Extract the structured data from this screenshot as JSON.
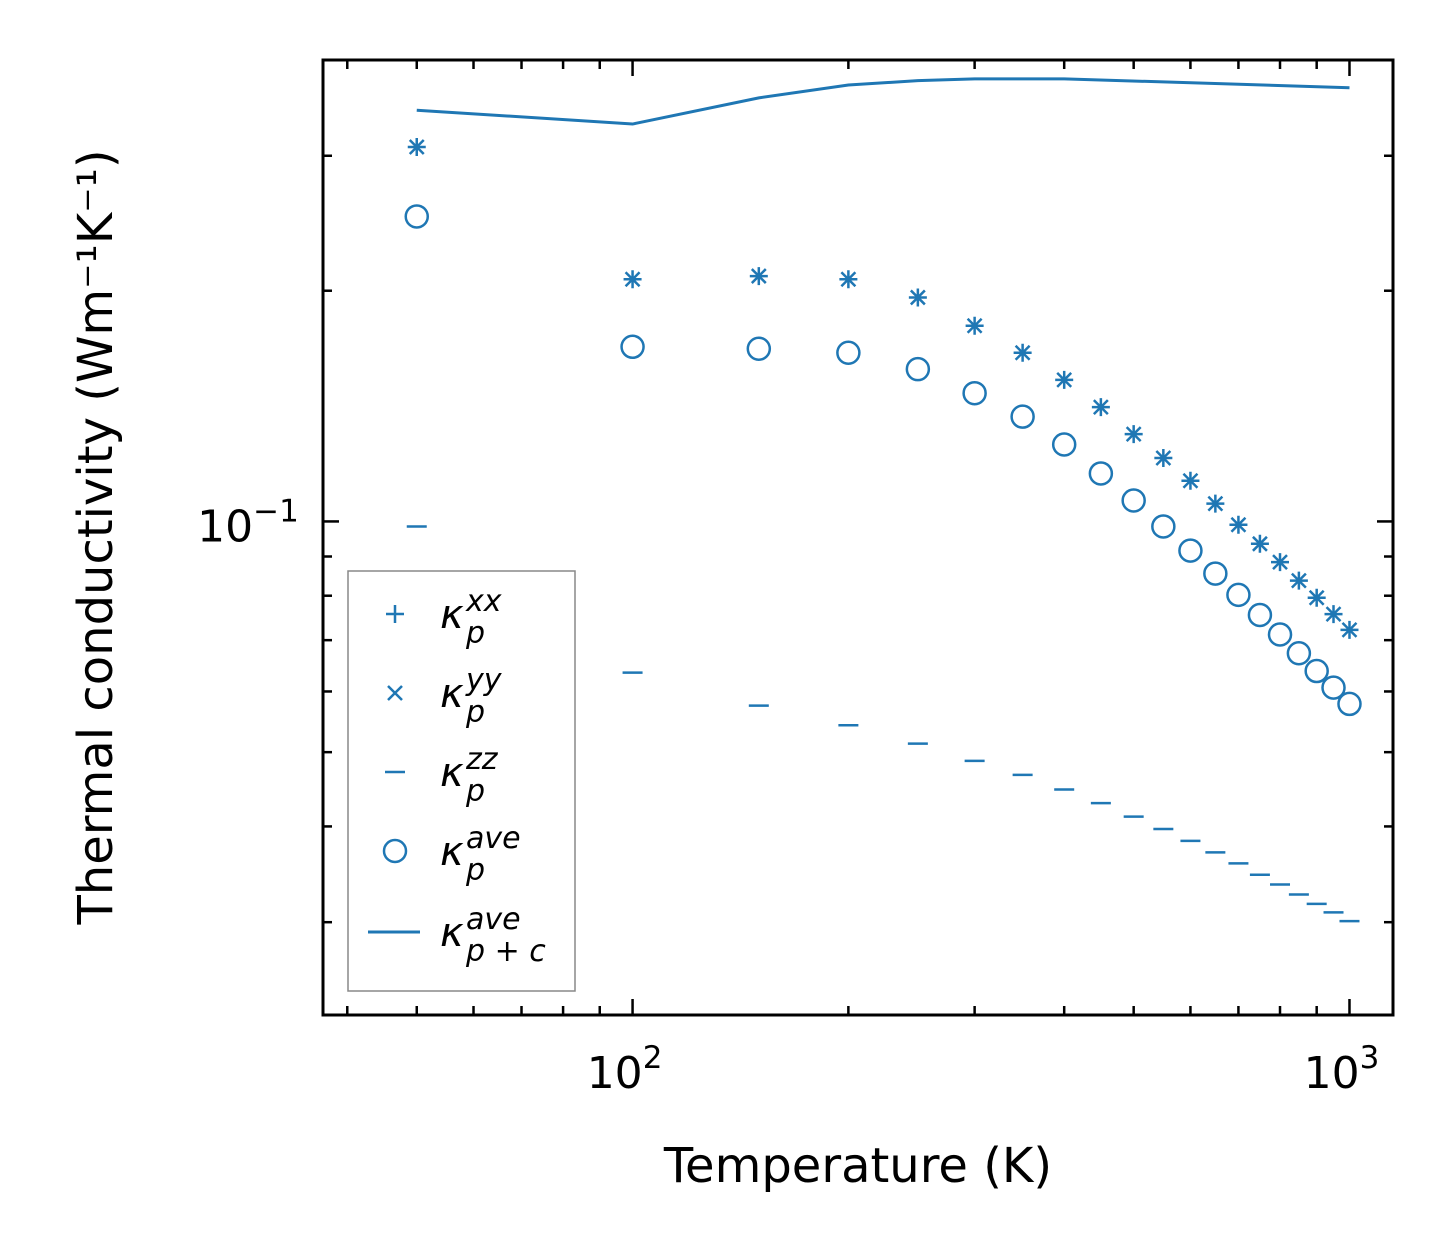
{
  "chart_data": {
    "type": "scatter",
    "xscale": "log",
    "yscale": "log",
    "xlim": [
      37,
      1150
    ],
    "ylim": [
      0.0227,
      0.4
    ],
    "xlabel": "Temperature (K)",
    "ylabel": "Thermal conductivity (Wm⁻¹K⁻¹)",
    "x_ticks": [
      {
        "value": 100,
        "base": "10",
        "exp": "2"
      },
      {
        "value": 1000,
        "base": "10",
        "exp": "3"
      }
    ],
    "y_ticks": [
      {
        "value": 0.1,
        "base": "10",
        "exp": "−1"
      }
    ],
    "legend_position": "lower-left",
    "color": "#1f77b4",
    "series": [
      {
        "name": "κ_p^xx",
        "base": "κ",
        "sub": "p",
        "sup": "xx",
        "marker": "plus",
        "x": [
          50,
          100,
          150,
          200,
          250,
          300,
          350,
          400,
          450,
          500,
          550,
          600,
          650,
          700,
          750,
          800,
          850,
          900,
          950,
          1000
        ],
        "y": [
          0.308,
          0.207,
          0.209,
          0.207,
          0.196,
          0.18,
          0.166,
          0.153,
          0.141,
          0.13,
          0.121,
          0.113,
          0.1055,
          0.099,
          0.0935,
          0.0885,
          0.0837,
          0.0795,
          0.0757,
          0.0722
        ]
      },
      {
        "name": "κ_p^yy",
        "base": "κ",
        "sub": "p",
        "sup": "yy",
        "marker": "x",
        "x": [
          50,
          100,
          150,
          200,
          250,
          300,
          350,
          400,
          450,
          500,
          550,
          600,
          650,
          700,
          750,
          800,
          850,
          900,
          950,
          1000
        ],
        "y": [
          0.308,
          0.207,
          0.209,
          0.207,
          0.196,
          0.18,
          0.166,
          0.153,
          0.141,
          0.13,
          0.121,
          0.113,
          0.1055,
          0.099,
          0.0935,
          0.0885,
          0.0837,
          0.0795,
          0.0757,
          0.0722
        ]
      },
      {
        "name": "κ_p^zz",
        "base": "κ",
        "sub": "p",
        "sup": "zz",
        "marker": "hline",
        "x": [
          50,
          100,
          150,
          200,
          250,
          300,
          350,
          400,
          450,
          500,
          550,
          600,
          650,
          700,
          750,
          800,
          850,
          900,
          950,
          1000
        ],
        "y": [
          0.0985,
          0.0635,
          0.0575,
          0.0542,
          0.0513,
          0.0487,
          0.0467,
          0.0447,
          0.0429,
          0.0412,
          0.0397,
          0.0383,
          0.037,
          0.0358,
          0.0346,
          0.0336,
          0.0326,
          0.0317,
          0.0309,
          0.0301
        ]
      },
      {
        "name": "κ_p^ave",
        "base": "κ",
        "sub": "p",
        "sup": "ave",
        "marker": "circle",
        "x": [
          50,
          100,
          150,
          200,
          250,
          300,
          350,
          400,
          450,
          500,
          550,
          600,
          650,
          700,
          750,
          800,
          850,
          900,
          950,
          1000
        ],
        "y": [
          0.25,
          0.169,
          0.168,
          0.166,
          0.158,
          0.147,
          0.137,
          0.126,
          0.1155,
          0.1065,
          0.0985,
          0.0916,
          0.0855,
          0.0802,
          0.0755,
          0.0712,
          0.0673,
          0.0638,
          0.0607,
          0.0578
        ]
      },
      {
        "name": "κ_p+c^ave",
        "base": "κ",
        "sub": "p + c",
        "sup": "ave",
        "marker": "line",
        "x": [
          50,
          100,
          150,
          200,
          250,
          300,
          400,
          1000
        ],
        "y": [
          0.344,
          0.33,
          0.357,
          0.371,
          0.376,
          0.378,
          0.378,
          0.368
        ]
      }
    ]
  }
}
